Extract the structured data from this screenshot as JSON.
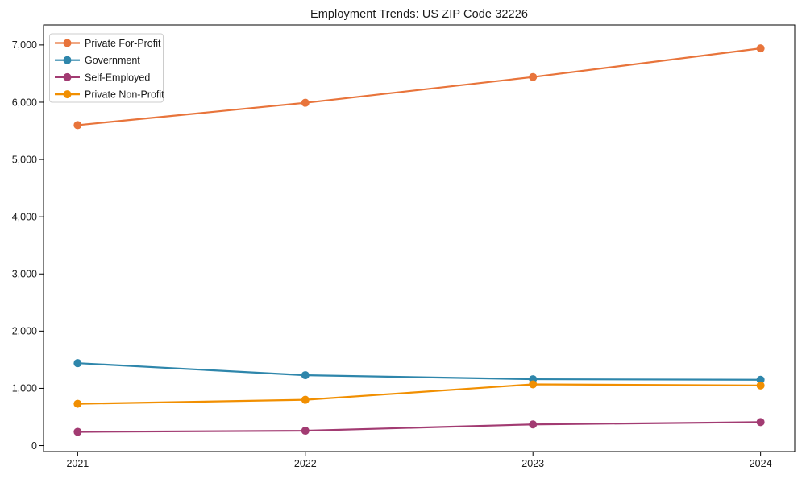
{
  "chart_data": {
    "type": "line",
    "title": "Employment Trends: US ZIP Code 32226",
    "xlabel": "",
    "ylabel": "",
    "x": [
      2021,
      2022,
      2023,
      2024
    ],
    "x_tick_labels": [
      "2021",
      "2022",
      "2023",
      "2024"
    ],
    "series": [
      {
        "name": "Private For-Profit",
        "color": "#E8743B",
        "values": [
          5600,
          5990,
          6440,
          6940
        ]
      },
      {
        "name": "Government",
        "color": "#2E86AB",
        "values": [
          1440,
          1230,
          1160,
          1150
        ]
      },
      {
        "name": "Self-Employed",
        "color": "#A23B72",
        "values": [
          240,
          260,
          370,
          410
        ]
      },
      {
        "name": "Private Non-Profit",
        "color": "#F18F01",
        "values": [
          730,
          800,
          1070,
          1050
        ]
      }
    ],
    "y_ticks": [
      0,
      1000,
      2000,
      3000,
      4000,
      5000,
      6000,
      7000
    ],
    "y_tick_labels": [
      "0",
      "1,000",
      "2,000",
      "3,000",
      "4,000",
      "5,000",
      "6,000",
      "7,000"
    ],
    "ylim": [
      -105,
      7350
    ],
    "xlim": [
      2020.85,
      2024.15
    ],
    "grid": false,
    "marker": "circle",
    "legend": {
      "position": "upper left",
      "entries": [
        "Private For-Profit",
        "Government",
        "Self-Employed",
        "Private Non-Profit"
      ]
    },
    "style": {
      "line_width": 2.2,
      "marker_radius": 5,
      "spine_color": "#000000",
      "legend_border_color": "#cccccc",
      "background": "#ffffff"
    }
  }
}
